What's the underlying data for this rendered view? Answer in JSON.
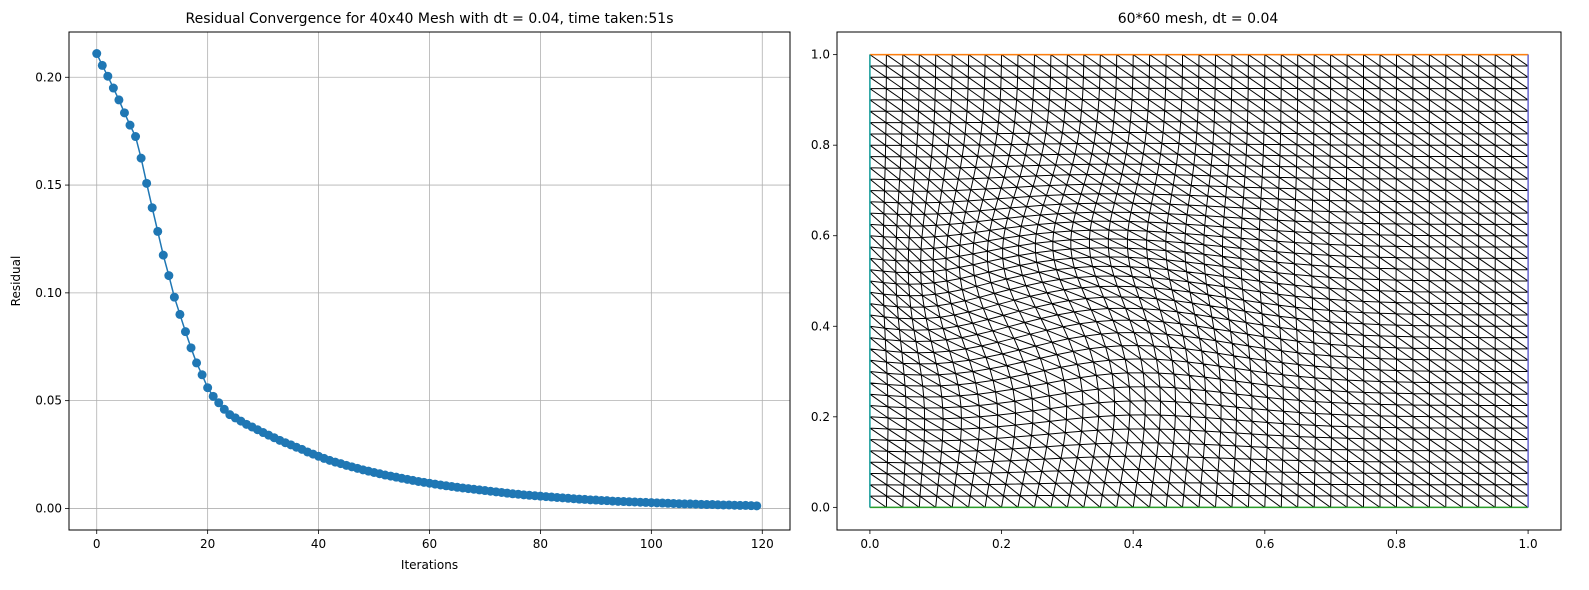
{
  "chart_data": [
    {
      "type": "line",
      "title": "Residual Convergence for 40x40 Mesh with dt = 0.04, time taken:51s",
      "xlabel": "Iterations",
      "ylabel": "Residual",
      "xlim": [
        -5,
        125
      ],
      "ylim": [
        -0.01,
        0.221
      ],
      "xticks": [
        0,
        20,
        40,
        60,
        80,
        100,
        120
      ],
      "yticks": [
        0.0,
        0.05,
        0.1,
        0.15,
        0.2
      ],
      "xtick_labels": [
        "0",
        "20",
        "40",
        "60",
        "80",
        "100",
        "120"
      ],
      "ytick_labels": [
        "0.00",
        "0.05",
        "0.10",
        "0.15",
        "0.20"
      ],
      "grid": true,
      "marker": "circle",
      "color": "#1f77b4",
      "series": [
        {
          "x": [
            0,
            1,
            2,
            3,
            4,
            5,
            6,
            7,
            8,
            9,
            10,
            11,
            12,
            13,
            14,
            15,
            16,
            17,
            18,
            19,
            20,
            21,
            22,
            23,
            24,
            25,
            26,
            27,
            28,
            29,
            30,
            31,
            32,
            33,
            34,
            35,
            36,
            37,
            38,
            39,
            40,
            41,
            42,
            43,
            44,
            45,
            46,
            47,
            48,
            49,
            50,
            51,
            52,
            53,
            54,
            55,
            56,
            57,
            58,
            59,
            60,
            61,
            62,
            63,
            64,
            65,
            66,
            67,
            68,
            69,
            70,
            71,
            72,
            73,
            74,
            75,
            76,
            77,
            78,
            79,
            80,
            81,
            82,
            83,
            84,
            85,
            86,
            87,
            88,
            89,
            90,
            91,
            92,
            93,
            94,
            95,
            96,
            97,
            98,
            99,
            100,
            101,
            102,
            103,
            104,
            105,
            106,
            107,
            108,
            109,
            110,
            111,
            112,
            113,
            114,
            115,
            116,
            117,
            118,
            119
          ],
          "values": [
            0.211,
            0.2055,
            0.2005,
            0.195,
            0.1895,
            0.1835,
            0.1778,
            0.1725,
            0.1625,
            0.1508,
            0.1395,
            0.1285,
            0.1175,
            0.108,
            0.098,
            0.09,
            0.082,
            0.0745,
            0.0675,
            0.062,
            0.056,
            0.052,
            0.049,
            0.046,
            0.0435,
            0.042,
            0.0405,
            0.039,
            0.0378,
            0.0365,
            0.0352,
            0.034,
            0.0328,
            0.0316,
            0.0305,
            0.0295,
            0.0284,
            0.0274,
            0.0262,
            0.0252,
            0.0242,
            0.0232,
            0.0223,
            0.0215,
            0.0208,
            0.02,
            0.0193,
            0.0186,
            0.0179,
            0.0173,
            0.0167,
            0.0161,
            0.0155,
            0.015,
            0.0145,
            0.014,
            0.0135,
            0.013,
            0.0125,
            0.0121,
            0.0117,
            0.0113,
            0.0109,
            0.0105,
            0.0102,
            0.0098,
            0.0095,
            0.0092,
            0.0089,
            0.0086,
            0.0083,
            0.008,
            0.0077,
            0.0074,
            0.0071,
            0.0068,
            0.0066,
            0.0063,
            0.0061,
            0.0059,
            0.0057,
            0.0055,
            0.0053,
            0.0051,
            0.0049,
            0.0047,
            0.0045,
            0.0043,
            0.0042,
            0.004,
            0.0039,
            0.0037,
            0.0036,
            0.0034,
            0.0033,
            0.0032,
            0.0031,
            0.003,
            0.0029,
            0.0028,
            0.0027,
            0.0026,
            0.0025,
            0.0024,
            0.0023,
            0.0022,
            0.0021,
            0.0021,
            0.002,
            0.0019,
            0.0018,
            0.0018,
            0.0017,
            0.0016,
            0.0016,
            0.0015,
            0.0014,
            0.0014,
            0.0013,
            0.0012
          ]
        }
      ]
    },
    {
      "type": "mesh",
      "title": "60*60 mesh, dt = 0.04",
      "xlim": [
        -0.05,
        1.05
      ],
      "ylim": [
        -0.05,
        1.05
      ],
      "xticks": [
        0.0,
        0.2,
        0.4,
        0.6,
        0.8,
        1.0
      ],
      "yticks": [
        0.0,
        0.2,
        0.4,
        0.6,
        0.8,
        1.0
      ],
      "xtick_labels": [
        "0.0",
        "0.2",
        "0.4",
        "0.6",
        "0.8",
        "1.0"
      ],
      "ytick_labels": [
        "0.0",
        "0.2",
        "0.4",
        "0.6",
        "0.8",
        "1.0"
      ],
      "grid": false,
      "mesh_color": "#000000",
      "boundaries": [
        {
          "edge": "bottom",
          "color": "#2ca02c"
        },
        {
          "edge": "top",
          "color": "#ff7f0e"
        },
        {
          "edge": "left",
          "color": "#17a2a0"
        },
        {
          "edge": "right",
          "color": "#6b6bd6"
        }
      ]
    }
  ]
}
